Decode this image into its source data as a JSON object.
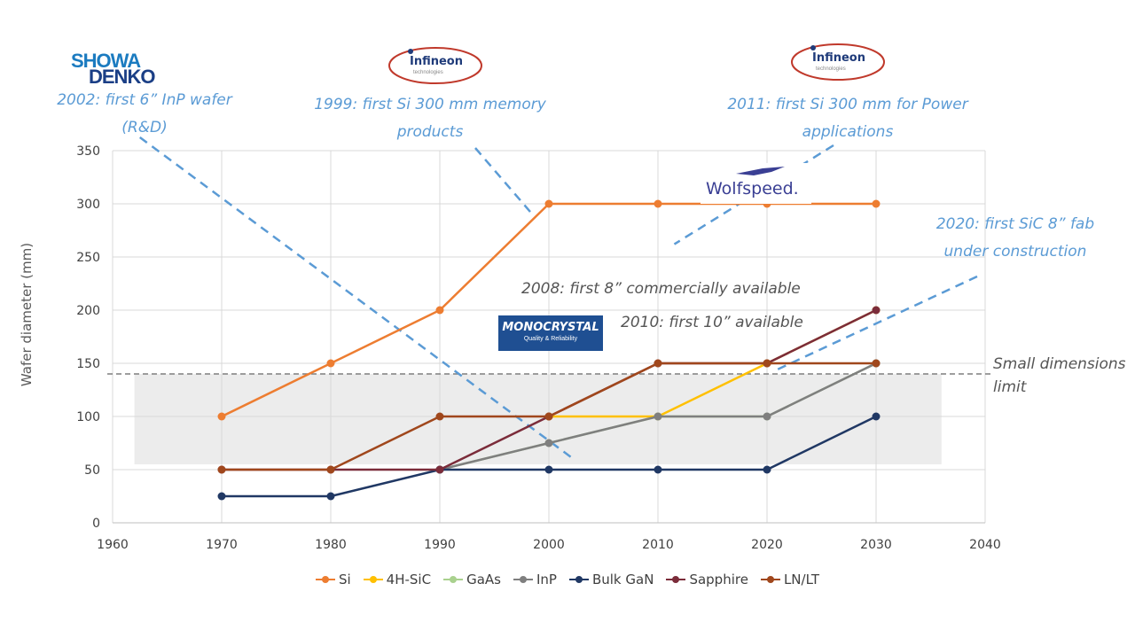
{
  "chart_data": {
    "type": "line",
    "xlabel": "",
    "ylabel": "Wafer diameter (mm)",
    "xlim": [
      1960,
      2040
    ],
    "ylim": [
      0,
      350
    ],
    "xticks": [
      "1960",
      "1970",
      "1980",
      "1990",
      "2000",
      "2010",
      "2020",
      "2030",
      "2040"
    ],
    "yticks": [
      "0",
      "50",
      "100",
      "150",
      "200",
      "250",
      "300",
      "350"
    ],
    "grid": true,
    "legend_position": "bottom",
    "small_dimensions_limit": 140,
    "shaded_band": {
      "x": [
        1962,
        2036
      ],
      "y": [
        55,
        140
      ]
    },
    "series": [
      {
        "name": "Si",
        "color": "#ed7d31",
        "points": [
          [
            1970,
            100
          ],
          [
            1980,
            150
          ],
          [
            1990,
            200
          ],
          [
            2000,
            300
          ],
          [
            2010,
            300
          ],
          [
            2020,
            300
          ],
          [
            2030,
            300
          ]
        ]
      },
      {
        "name": "4H-SiC",
        "color": "#ffc000",
        "points": [
          [
            2000,
            100
          ],
          [
            2010,
            100
          ],
          [
            2020,
            150
          ],
          [
            2030,
            200
          ]
        ]
      },
      {
        "name": "GaAs",
        "color": "#a9d18e",
        "points": [
          [
            1990,
            50
          ],
          [
            2000,
            75
          ],
          [
            2010,
            100
          ],
          [
            2020,
            100
          ],
          [
            2030,
            150
          ]
        ]
      },
      {
        "name": "InP",
        "color": "#7f7f7f",
        "points": [
          [
            1990,
            50
          ],
          [
            2000,
            75
          ],
          [
            2010,
            100
          ],
          [
            2020,
            100
          ],
          [
            2030,
            150
          ]
        ]
      },
      {
        "name": "Bulk GaN",
        "color": "#203864",
        "points": [
          [
            1970,
            25
          ],
          [
            1980,
            25
          ],
          [
            1990,
            50
          ],
          [
            2000,
            50
          ],
          [
            2010,
            50
          ],
          [
            2020,
            50
          ],
          [
            2030,
            100
          ]
        ]
      },
      {
        "name": "Sapphire",
        "color": "#7b2c3a",
        "points": [
          [
            1970,
            50
          ],
          [
            1980,
            50
          ],
          [
            1990,
            50
          ],
          [
            2000,
            100
          ],
          [
            2010,
            150
          ],
          [
            2020,
            150
          ],
          [
            2030,
            200
          ]
        ]
      },
      {
        "name": "LN/LT",
        "color": "#a0471c",
        "points": [
          [
            1970,
            50
          ],
          [
            1980,
            50
          ],
          [
            1990,
            100
          ],
          [
            2000,
            100
          ],
          [
            2010,
            150
          ],
          [
            2020,
            150
          ],
          [
            2030,
            150
          ]
        ]
      }
    ]
  },
  "annotations": {
    "showa": "2002: first 6” InP wafer (R&D)",
    "infineon_1999": "1999: first Si 300 mm memory products",
    "infineon_2011": "2011: first Si 300 mm for Power applications",
    "sic_2020": "2020: first SiC 8” fab under construction",
    "first8": "2008: first 8” commercially available",
    "first10": "2010: first 10” available",
    "small_dim": "Small dimensions limit"
  },
  "logos": {
    "showa_line1": "SHOWA",
    "showa_line2": "DENKO",
    "infineon": "Infineon",
    "infineon_sub": "technologies",
    "wolfspeed": "Wolfspeed.",
    "monocrystal": "MONOCRYSTAL",
    "monocrystal_sub": "Quality & Reliability"
  },
  "colors": {
    "annotation_blue": "#5b9bd5",
    "grid": "#d9d9d9",
    "band": "#ececec"
  }
}
